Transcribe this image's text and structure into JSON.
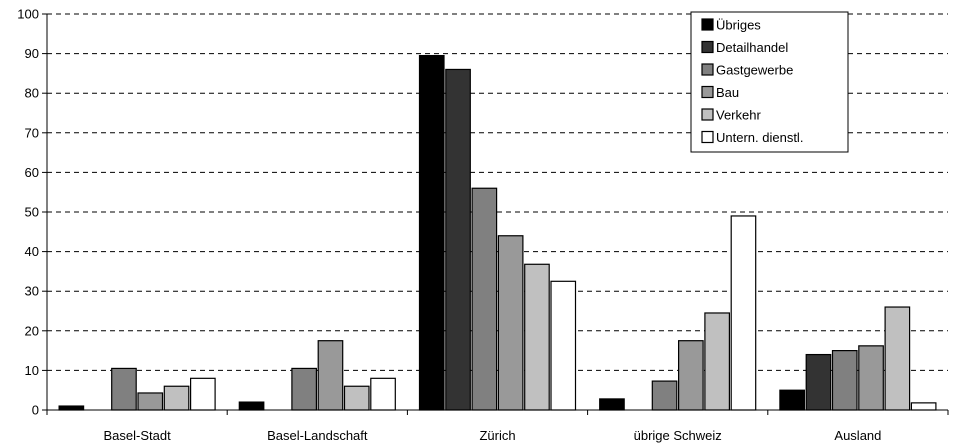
{
  "chart_data": {
    "type": "bar",
    "title": "",
    "xlabel": "",
    "ylabel": "",
    "ylim": [
      0,
      100
    ],
    "yticks": [
      0,
      10,
      20,
      30,
      40,
      50,
      60,
      70,
      80,
      90,
      100
    ],
    "grid": true,
    "legend_position": "top-right",
    "categories": [
      "Basel-Stadt",
      "Basel-Landschaft",
      "Zürich",
      "übrige Schweiz",
      "Ausland"
    ],
    "series": [
      {
        "name": "Übriges",
        "color": "#000000",
        "values": [
          1.0,
          2.0,
          89.5,
          2.8,
          5.0
        ]
      },
      {
        "name": "Detailhandel",
        "color": "#333333",
        "values": [
          0,
          0,
          86.0,
          0,
          14.0
        ]
      },
      {
        "name": "Gastgewerbe",
        "color": "#808080",
        "values": [
          10.5,
          10.5,
          56.0,
          7.3,
          15.0
        ]
      },
      {
        "name": "Bau",
        "color": "#999999",
        "values": [
          4.3,
          17.5,
          44.0,
          17.5,
          16.2
        ]
      },
      {
        "name": "Verkehr",
        "color": "#c0c0c0",
        "values": [
          6.0,
          6.0,
          36.8,
          24.5,
          26.0
        ]
      },
      {
        "name": "Untern. dienstl.",
        "color": "#ffffff",
        "values": [
          8.0,
          8.0,
          32.5,
          49.0,
          1.8
        ]
      }
    ]
  }
}
